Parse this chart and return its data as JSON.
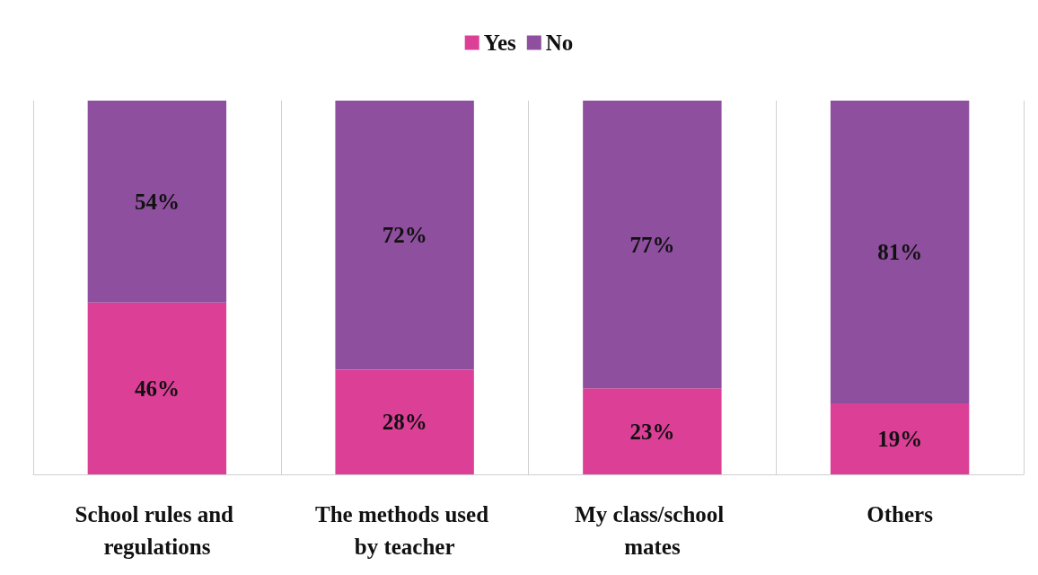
{
  "chart_data": {
    "type": "bar",
    "stacked": true,
    "categories": [
      "School rules and regulations",
      "The methods used by teacher",
      "My class/school mates",
      "Others"
    ],
    "series": [
      {
        "name": "Yes",
        "color": "#dc3f96",
        "values": [
          46,
          28,
          23,
          19
        ],
        "value_labels": [
          "46%",
          "28%",
          "23%",
          "19%"
        ]
      },
      {
        "name": "No",
        "color": "#8e4f9e",
        "values": [
          54,
          72,
          77,
          81
        ],
        "value_labels": [
          "54%",
          "72%",
          "77%",
          "81%"
        ]
      }
    ],
    "legend": "top",
    "grid": "x"
  }
}
